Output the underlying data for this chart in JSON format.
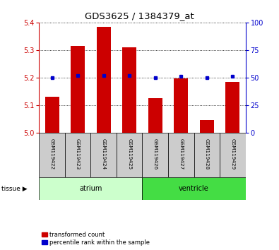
{
  "title": "GDS3625 / 1384379_at",
  "samples": [
    "GSM119422",
    "GSM119423",
    "GSM119424",
    "GSM119425",
    "GSM119426",
    "GSM119427",
    "GSM119428",
    "GSM119429"
  ],
  "red_values": [
    5.13,
    5.315,
    5.385,
    5.31,
    5.125,
    5.198,
    5.045,
    5.185
  ],
  "blue_values": [
    50,
    52,
    52,
    52,
    50,
    51,
    50,
    51
  ],
  "ylim_left": [
    5.0,
    5.4
  ],
  "ylim_right": [
    0,
    100
  ],
  "yticks_left": [
    5.0,
    5.1,
    5.2,
    5.3,
    5.4
  ],
  "yticks_right": [
    0,
    25,
    50,
    75,
    100
  ],
  "red_color": "#cc0000",
  "blue_color": "#0000cc",
  "bar_width": 0.55,
  "base_value": 5.0,
  "atrium_color": "#ccffcc",
  "ventricle_color": "#44dd44",
  "legend_items": [
    "transformed count",
    "percentile rank within the sample"
  ],
  "sample_box_color": "#cccccc",
  "left_tick_color": "#cc0000",
  "right_tick_color": "#0000cc"
}
